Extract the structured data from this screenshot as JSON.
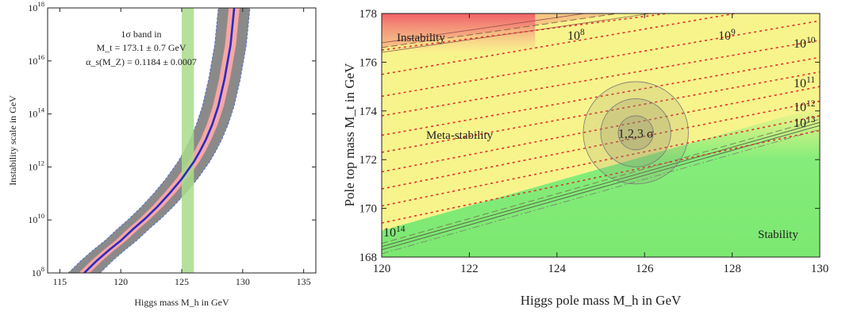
{
  "chart_data": [
    {
      "type": "line",
      "xlabel": "Higgs mass M_h in GeV",
      "ylabel": "Instability scale in GeV",
      "xlim": [
        114,
        136
      ],
      "ylim_log10": [
        8,
        18
      ],
      "x_ticks": [
        115,
        120,
        125,
        130,
        135
      ],
      "y_ticks": [
        {
          "exp": 8,
          "label": "10",
          "sup": "8"
        },
        {
          "exp": 10,
          "label": "10",
          "sup": "10"
        },
        {
          "exp": 12,
          "label": "10",
          "sup": "12"
        },
        {
          "exp": 14,
          "label": "10",
          "sup": "14"
        },
        {
          "exp": 16,
          "label": "10",
          "sup": "16"
        },
        {
          "exp": 18,
          "label": "10",
          "sup": "18"
        }
      ],
      "annotation": {
        "line1": "1σ band in",
        "line2": "M_t = 173.1 ± 0.7 GeV",
        "line3": "α_s(M_Z) = 0.1184 ± 0.0007"
      },
      "central_curve": {
        "x": [
          117.0,
          118.0,
          119.0,
          120.0,
          121.0,
          122.0,
          123.0,
          124.0,
          125.0,
          126.0,
          126.5,
          127.0,
          127.5,
          128.0,
          128.5,
          129.0,
          129.3
        ],
        "log10_scale": [
          8.0,
          8.45,
          8.85,
          9.22,
          9.65,
          10.05,
          10.5,
          11.0,
          11.55,
          12.2,
          12.6,
          13.05,
          13.6,
          14.3,
          15.3,
          16.6,
          18.0
        ]
      },
      "bands": [
        {
          "name": "gray",
          "color": "#8a8a8a",
          "x_offset": 1.3
        },
        {
          "name": "pink",
          "color": "#f4a8a8",
          "x_offset": 0.45
        }
      ],
      "vertical_band": {
        "x_range": [
          125.0,
          126.0
        ],
        "color": "#a8dc8c"
      },
      "curve_color": "#2a2ac0"
    },
    {
      "type": "heatmap",
      "xlabel": "Higgs pole mass M_h in GeV",
      "ylabel": "Pole top mass M_t in GeV",
      "xlim": [
        120,
        130
      ],
      "ylim": [
        168,
        178
      ],
      "x_ticks": [
        120,
        122,
        124,
        126,
        128,
        130
      ],
      "y_ticks": [
        168,
        170,
        172,
        174,
        176,
        178
      ],
      "regions": [
        {
          "label": "Instability",
          "color": "#f07070"
        },
        {
          "label": "Meta-stability",
          "color": "#f8f48c"
        },
        {
          "label": "Stability",
          "color": "#78ec78"
        }
      ],
      "contour_lines": [
        {
          "label": "10",
          "sup": "8",
          "x0": 120,
          "y0": 176.5,
          "x1": 130,
          "y1": 178.8
        },
        {
          "label": "10",
          "sup": "9",
          "x0": 120,
          "y0": 175.5,
          "x1": 130,
          "y1": 178.6
        },
        {
          "label": "10",
          "sup": "10",
          "x0": 120,
          "y0": 174.6,
          "x1": 130,
          "y1": 177.7
        },
        {
          "label": "10",
          "sup": "11",
          "x0": 120,
          "y0": 173.8,
          "x1": 130,
          "y1": 176.9
        },
        {
          "label": "10",
          "sup": "12",
          "x0": 120,
          "y0": 173.0,
          "x1": 130,
          "y1": 176.2
        },
        {
          "label": "10",
          "sup": "13",
          "x0": 120,
          "y0": 172.3,
          "x1": 130,
          "y1": 175.6
        },
        {
          "label": "",
          "sup": "",
          "x0": 120,
          "y0": 171.5,
          "x1": 130,
          "y1": 175.0
        },
        {
          "label": "",
          "sup": "",
          "x0": 120,
          "y0": 170.8,
          "x1": 130,
          "y1": 174.4
        },
        {
          "label": "",
          "sup": "",
          "x0": 120,
          "y0": 170.1,
          "x1": 130,
          "y1": 173.8
        },
        {
          "label": "10",
          "sup": "14",
          "x0": 120,
          "y0": 169.4,
          "x1": 130,
          "y1": 173.2
        }
      ],
      "stability_boundary": {
        "x0": 120,
        "y0": 168.3,
        "x1": 130,
        "y1": 173.4
      },
      "instability_boundary": {
        "x0": 120,
        "y0": 176.6,
        "x1": 130,
        "y1": 179.2
      },
      "ellipse": {
        "center_x": 125.8,
        "center_y": 173.1,
        "label": "1,2,3 σ",
        "sigma_x": 0.4,
        "sigma_y": 0.7
      }
    }
  ]
}
